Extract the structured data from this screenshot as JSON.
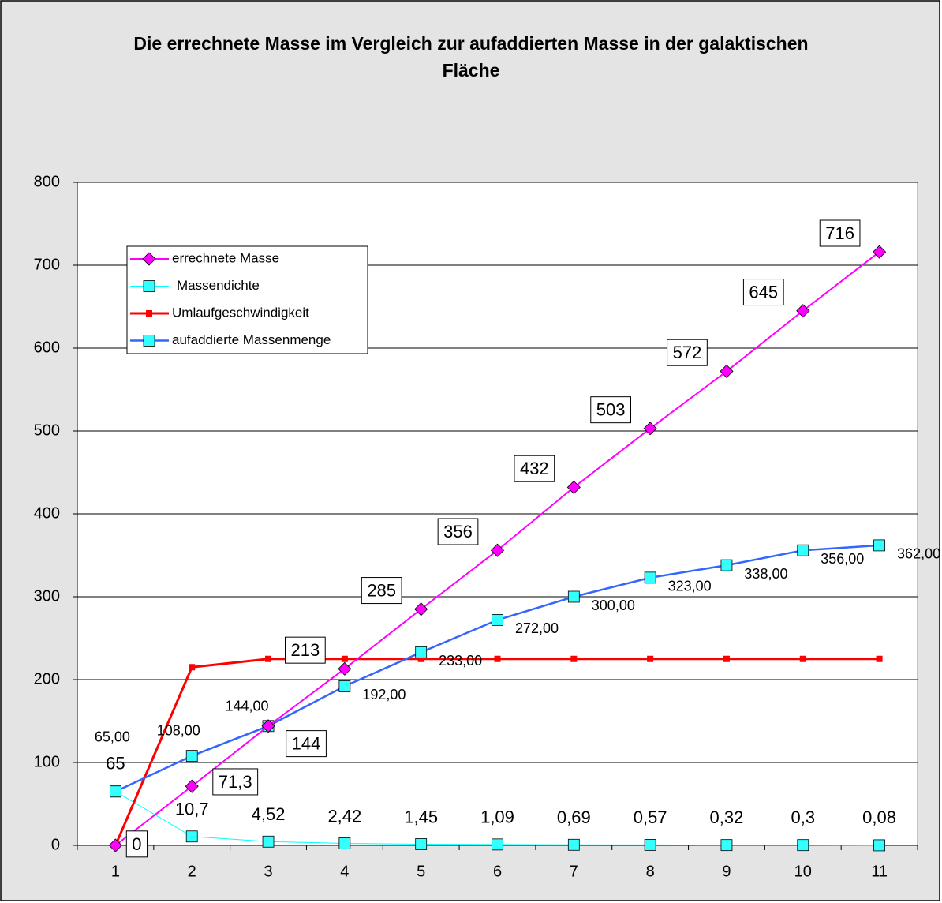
{
  "chart_data": {
    "type": "line",
    "title": "Die errechnete Masse im Vergleich zur aufaddierten Masse in der galaktischen Fläche",
    "categories": [
      "1",
      "2",
      "3",
      "4",
      "5",
      "6",
      "7",
      "8",
      "9",
      "10",
      "11"
    ],
    "ylim": [
      0,
      800
    ],
    "yticks": [
      0,
      100,
      200,
      300,
      400,
      500,
      600,
      700,
      800
    ],
    "grid": true,
    "series": [
      {
        "name": "errechnete Masse",
        "color": "#ff00ff",
        "marker": "diamond",
        "values": [
          0,
          71.3,
          144,
          213,
          285,
          356,
          432,
          503,
          572,
          645,
          716
        ],
        "value_labels": [
          "0",
          "71,3",
          "144",
          "213",
          "285",
          "356",
          "432",
          "503",
          "572",
          "645",
          "716"
        ]
      },
      {
        "name": "Massendichte",
        "color": "#00ffff",
        "marker": "square",
        "values": [
          65,
          10.7,
          4.52,
          2.42,
          1.45,
          1.09,
          0.69,
          0.57,
          0.32,
          0.3,
          0.08
        ],
        "value_labels": [
          "65",
          "10,7",
          "4,52",
          "2,42",
          "1,45",
          "1,09",
          "0,69",
          "0,57",
          "0,32",
          "0,3",
          "0,08"
        ]
      },
      {
        "name": "Umlaufgeschwindigkeit",
        "color": "#ff0000",
        "marker": "smallsquare",
        "values": [
          0,
          215,
          225,
          225,
          225,
          225,
          225,
          225,
          225,
          225,
          225
        ]
      },
      {
        "name": "aufaddierte Massenmenge",
        "color": "#3366ff",
        "marker": "square",
        "values": [
          65,
          108,
          144,
          192,
          233,
          272,
          300,
          323,
          338,
          356,
          362
        ],
        "value_labels": [
          "65,00",
          "108,00",
          "144,00",
          "192,00",
          "233,00",
          "272,00",
          "300,00",
          "323,00",
          "338,00",
          "356,00",
          "362,00"
        ]
      }
    ]
  }
}
